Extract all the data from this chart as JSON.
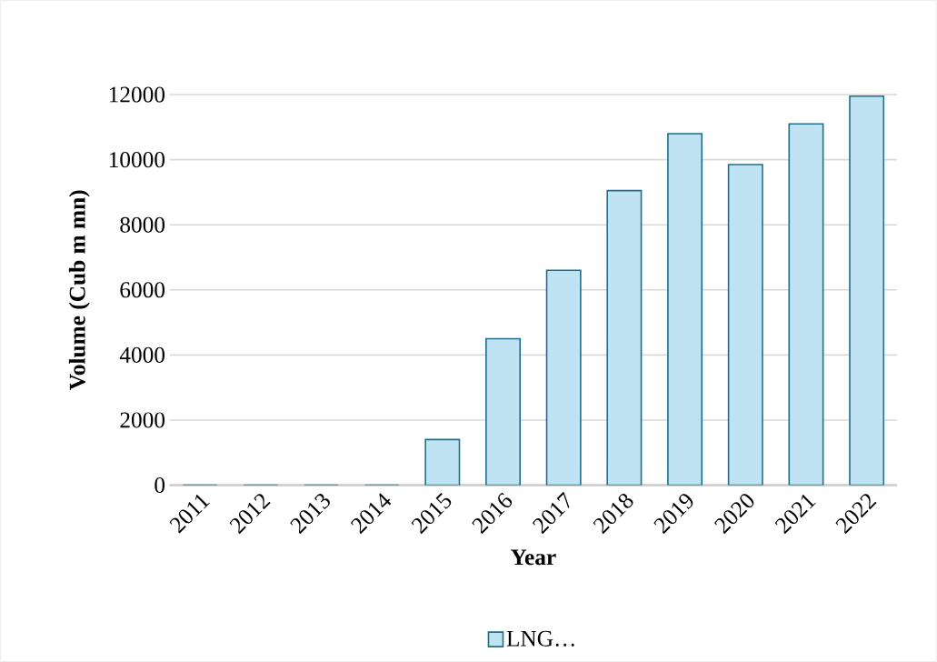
{
  "chart_data": {
    "type": "bar",
    "xlabel": "Year",
    "ylabel": "Volume (Cub m mn)",
    "categories": [
      "2011",
      "2012",
      "2013",
      "2014",
      "2015",
      "2016",
      "2017",
      "2018",
      "2019",
      "2020",
      "2021",
      "2022"
    ],
    "series": [
      {
        "name": "LNG…",
        "color": "#bfe3f2",
        "values": [
          0,
          0,
          0,
          0,
          1400,
          4500,
          6600,
          9050,
          10800,
          9850,
          11100,
          11950
        ]
      }
    ],
    "ylim": [
      0,
      12000
    ],
    "yticks": [
      0,
      2000,
      4000,
      6000,
      8000,
      10000,
      12000
    ],
    "grid": "y",
    "legend": "bottom"
  }
}
